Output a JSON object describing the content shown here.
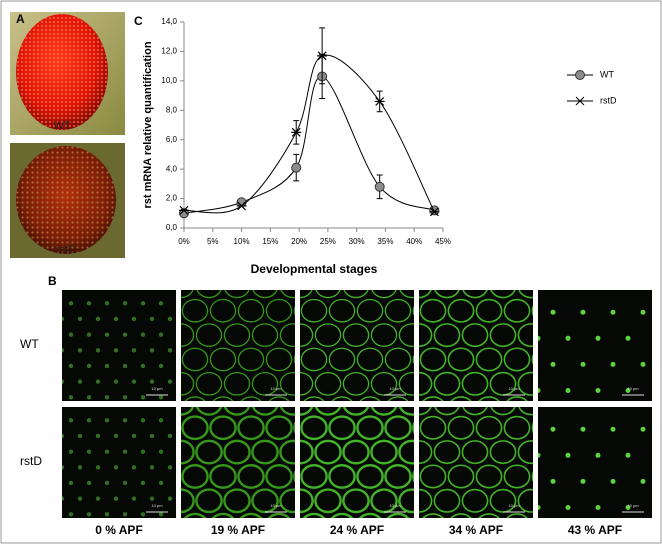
{
  "panel_labels": [
    "A",
    "B",
    "C"
  ],
  "eye_images": [
    {
      "label": "WT"
    },
    {
      "label": "rstD"
    }
  ],
  "chart_data": {
    "type": "line",
    "xlabel": "Developmental stages",
    "ylabel": "rst mRNA relative quantification",
    "xlim": [
      0,
      45
    ],
    "ylim": [
      0,
      14
    ],
    "xticks": [
      {
        "value": 0,
        "label": "0%"
      },
      {
        "value": 5,
        "label": "5%"
      },
      {
        "value": 10,
        "label": "10%"
      },
      {
        "value": 15,
        "label": "15%"
      },
      {
        "value": 20,
        "label": "20%"
      },
      {
        "value": 25,
        "label": "25%"
      },
      {
        "value": 30,
        "label": "30%"
      },
      {
        "value": 35,
        "label": "35%"
      },
      {
        "value": 40,
        "label": "40%"
      },
      {
        "value": 45,
        "label": "45%"
      }
    ],
    "yticks": [
      {
        "value": 0,
        "label": "0,0"
      },
      {
        "value": 2,
        "label": "2,0"
      },
      {
        "value": 4,
        "label": "4,0"
      },
      {
        "value": 6,
        "label": "6,0"
      },
      {
        "value": 8,
        "label": "8,0"
      },
      {
        "value": 10,
        "label": "10,0"
      },
      {
        "value": 12,
        "label": "12,0"
      },
      {
        "value": 14,
        "label": "14,0"
      }
    ],
    "x": [
      0,
      10,
      19.5,
      24,
      34,
      43.5
    ],
    "series": [
      {
        "name": "WT",
        "color": "#000000",
        "marker": "circle",
        "marker_color": "#8c8c8c",
        "values": [
          1.0,
          1.75,
          4.1,
          10.3,
          2.8,
          1.2
        ],
        "errors": [
          null,
          null,
          0.9,
          1.5,
          0.8,
          null
        ]
      },
      {
        "name": "rstD",
        "color": "#000000",
        "marker": "x",
        "values": [
          1.2,
          1.5,
          6.5,
          11.7,
          8.6,
          1.1
        ],
        "errors": [
          null,
          null,
          0.8,
          1.9,
          0.7,
          null
        ]
      }
    ],
    "legend": "right"
  },
  "micrographs": {
    "rows": [
      "WT",
      "rstD"
    ],
    "columns": [
      "0 % APF",
      "19 % APF",
      "24 % APF",
      "34 % APF",
      "43 % APF"
    ],
    "scale_bar": "10 µm"
  }
}
